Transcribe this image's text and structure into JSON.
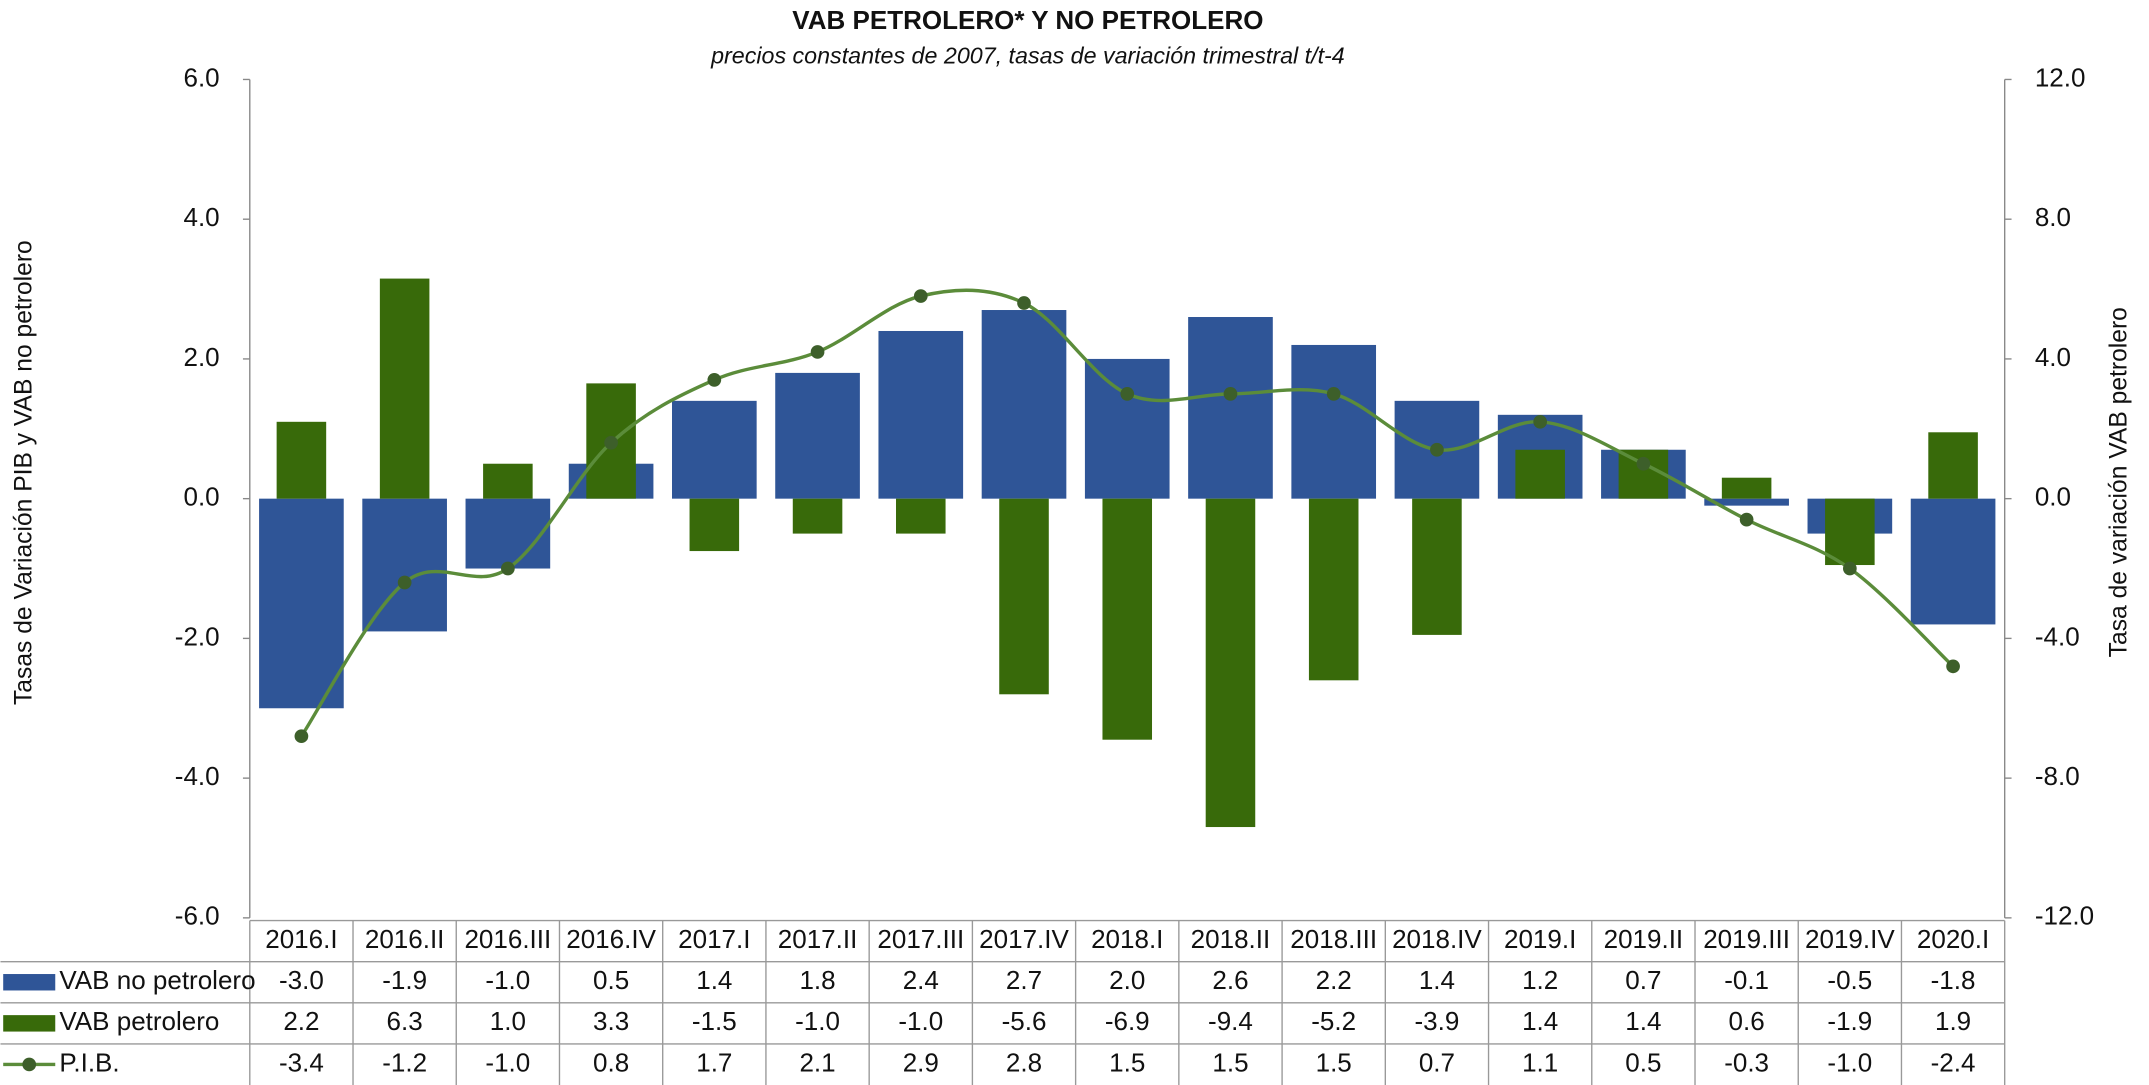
{
  "chart_data": {
    "type": "bar",
    "title": "VAB PETROLERO* Y NO PETROLERO",
    "subtitle": "precios constantes de 2007, tasas de variación trimestral t/t-4",
    "y_label": "Tasas de Variación PIB y VAB no petrolero",
    "y2_label": "Tasa de variación VAB petrolero",
    "categories": [
      "2016.I",
      "2016.II",
      "2016.III",
      "2016.IV",
      "2017.I",
      "2017.II",
      "2017.III",
      "2017.IV",
      "2018.I",
      "2018.II",
      "2018.III",
      "2018.IV",
      "2019.I",
      "2019.II",
      "2019.III",
      "2019.IV",
      "2020.I"
    ],
    "series": [
      {
        "name": "VAB no petrolero",
        "color": "#2f5597",
        "type": "bar",
        "values": [
          -3.0,
          -1.9,
          -1.0,
          0.5,
          1.4,
          1.8,
          2.4,
          2.7,
          2.0,
          2.6,
          2.2,
          1.4,
          1.2,
          0.7,
          -0.1,
          -0.5,
          -1.8
        ],
        "value_labels": [
          "-3.0",
          "-1.9",
          "-1.0",
          "0.5",
          "1.4",
          "1.8",
          "2.4",
          "2.7",
          "2.0",
          "2.6",
          "2.2",
          "1.4",
          "1.2",
          "0.7",
          "-0.1",
          "-0.5",
          "-1.8"
        ]
      },
      {
        "name": "VAB petrolero",
        "color": "#386a0a",
        "type": "bar",
        "axis": "y2",
        "values": [
          2.2,
          6.3,
          1.0,
          3.3,
          -1.5,
          -1.0,
          -1.0,
          -5.6,
          -6.9,
          -9.4,
          -5.2,
          -3.9,
          1.4,
          1.4,
          0.6,
          -1.9,
          1.9
        ],
        "value_labels": [
          "2.2",
          "6.3",
          "1.0",
          "3.3",
          "-1.5",
          "-1.0",
          "-1.0",
          "-5.6",
          "-6.9",
          "-9.4",
          "-5.2",
          "-3.9",
          "1.4",
          "1.4",
          "0.6",
          "-1.9",
          "1.9"
        ]
      },
      {
        "name": "P.I.B.",
        "color": "#5b8c3a",
        "type": "line",
        "values": [
          -3.4,
          -1.2,
          -1.0,
          0.8,
          1.7,
          2.1,
          2.9,
          2.8,
          1.5,
          1.5,
          1.5,
          0.7,
          1.1,
          0.5,
          -0.3,
          -1.0,
          -2.4
        ],
        "value_labels": [
          "-3.4",
          "-1.2",
          "-1.0",
          "0.8",
          "1.7",
          "2.1",
          "2.9",
          "2.8",
          "1.5",
          "1.5",
          "1.5",
          "0.7",
          "1.1",
          "0.5",
          "-0.3",
          "-1.0",
          "-2.4"
        ]
      }
    ],
    "ylim": [
      -6,
      6
    ],
    "yticks": [
      {
        "value": -6,
        "label": "-6.0"
      },
      {
        "value": -4,
        "label": "-4.0"
      },
      {
        "value": -2,
        "label": "-2.0"
      },
      {
        "value": 0,
        "label": "0.0"
      },
      {
        "value": 2,
        "label": "2.0"
      },
      {
        "value": 4,
        "label": "4.0"
      },
      {
        "value": 6,
        "label": "6.0"
      }
    ],
    "y2lim": [
      -12,
      12
    ],
    "y2ticks": [
      {
        "value": -12,
        "label": "-12.0"
      },
      {
        "value": -8,
        "label": "-8.0"
      },
      {
        "value": -4,
        "label": "-4.0"
      },
      {
        "value": 0,
        "label": "0.0"
      },
      {
        "value": 4,
        "label": "4.0"
      },
      {
        "value": 8,
        "label": "8.0"
      },
      {
        "value": 12,
        "label": "12.0"
      }
    ]
  }
}
